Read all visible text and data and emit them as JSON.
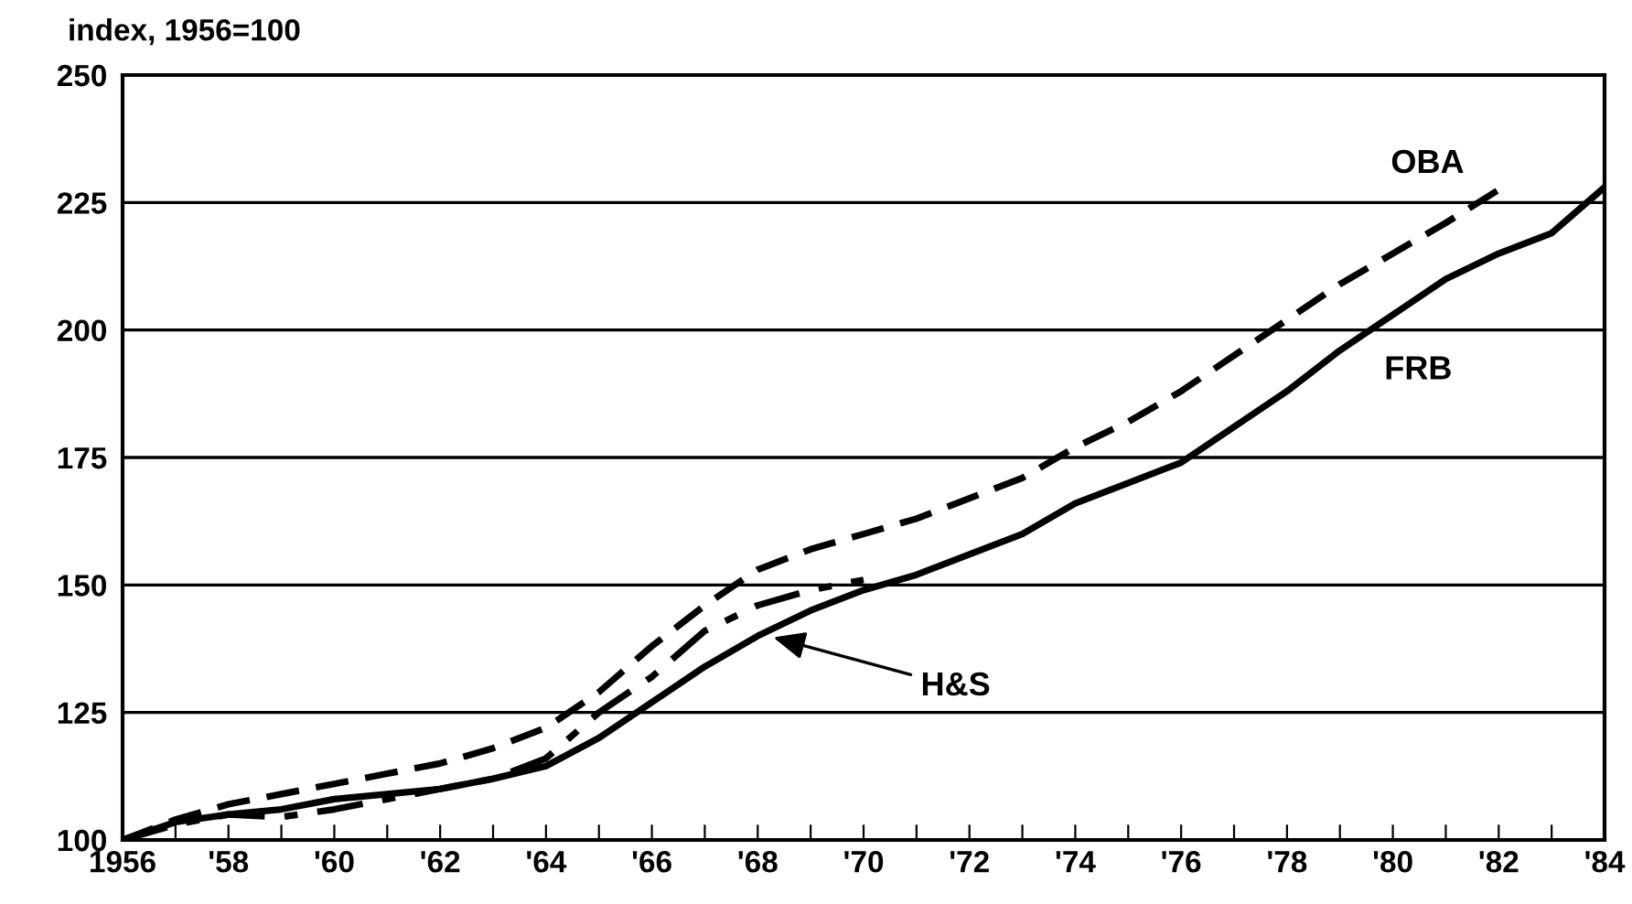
{
  "chart_data": {
    "type": "line",
    "ylabel": "index, 1956=100",
    "x": [
      1956,
      1957,
      1958,
      1959,
      1960,
      1961,
      1962,
      1963,
      1964,
      1965,
      1966,
      1967,
      1968,
      1969,
      1970,
      1971,
      1972,
      1973,
      1974,
      1975,
      1976,
      1977,
      1978,
      1979,
      1980,
      1981,
      1982,
      1983,
      1984
    ],
    "series": [
      {
        "name": "FRB",
        "color": "#000000",
        "line_style": "solid",
        "values": [
          100,
          103.5,
          105,
          106,
          108,
          109,
          110,
          112,
          114.5,
          120,
          127,
          134,
          140,
          145,
          149,
          152,
          156,
          160,
          166,
          170,
          174,
          181,
          188,
          196,
          203,
          210,
          215,
          219,
          228
        ]
      },
      {
        "name": "OBA",
        "color": "#000000",
        "line_style": "dashed",
        "values": [
          100,
          104,
          107,
          109,
          111,
          113,
          115,
          118,
          122,
          129,
          138,
          146,
          153,
          157,
          160,
          163,
          167,
          171,
          177,
          182,
          188,
          195,
          202,
          209,
          215,
          221,
          227.5,
          null,
          null
        ]
      },
      {
        "color": "#000000",
        "line_style": "dashdot",
        "values": [
          100,
          103,
          105,
          104.5,
          106,
          108,
          110,
          112,
          116,
          125,
          132,
          141,
          146,
          149,
          151,
          null,
          null,
          null,
          null,
          null,
          null,
          null,
          null,
          null,
          null,
          null,
          null,
          null,
          null
        ]
      }
    ],
    "annotations": [
      {
        "text": "H&S",
        "x": 1968.2,
        "y": 140
      }
    ],
    "xlim": [
      1956,
      1984
    ],
    "xticks": [
      {
        "value": 1956,
        "label": "1956"
      },
      {
        "value": 1957,
        "label": null
      },
      {
        "value": 1958,
        "label": "'58"
      },
      {
        "value": 1959,
        "label": null
      },
      {
        "value": 1960,
        "label": "'60"
      },
      {
        "value": 1961,
        "label": null
      },
      {
        "value": 1962,
        "label": "'62"
      },
      {
        "value": 1963,
        "label": null
      },
      {
        "value": 1964,
        "label": "'64"
      },
      {
        "value": 1965,
        "label": null
      },
      {
        "value": 1966,
        "label": "'66"
      },
      {
        "value": 1967,
        "label": null
      },
      {
        "value": 1968,
        "label": "'68"
      },
      {
        "value": 1969,
        "label": null
      },
      {
        "value": 1970,
        "label": "'70"
      },
      {
        "value": 1971,
        "label": null
      },
      {
        "value": 1972,
        "label": "'72"
      },
      {
        "value": 1973,
        "label": null
      },
      {
        "value": 1974,
        "label": "'74"
      },
      {
        "value": 1975,
        "label": null
      },
      {
        "value": 1976,
        "label": "'76"
      },
      {
        "value": 1977,
        "label": null
      },
      {
        "value": 1978,
        "label": "'78"
      },
      {
        "value": 1979,
        "label": null
      },
      {
        "value": 1980,
        "label": "'80"
      },
      {
        "value": 1981,
        "label": null
      },
      {
        "value": 1982,
        "label": "'82"
      },
      {
        "value": 1983,
        "label": null
      },
      {
        "value": 1984,
        "label": "'84"
      }
    ],
    "ylim": [
      100,
      250
    ],
    "yticks": [
      100,
      125,
      150,
      175,
      200,
      225,
      250
    ],
    "grid": "y",
    "legend": false,
    "marker": "none"
  }
}
